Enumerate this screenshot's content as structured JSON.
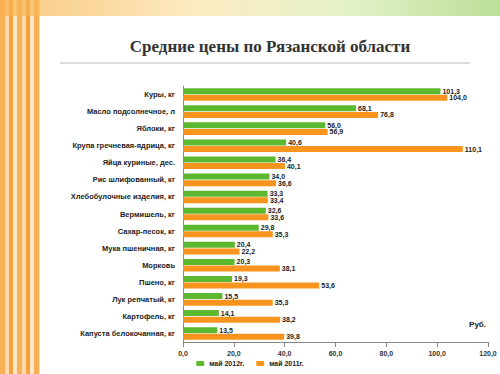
{
  "chart_data": {
    "type": "bar",
    "title": "Средние цены по Рязанской области",
    "orientation": "horizontal",
    "categories": [
      "Куры, кг",
      "Масло подсолнечное, л",
      "Яблоки, кг",
      "Крупа гречневая-ядрица, кг",
      "Яйца куриные, дес.",
      "Рис шлифованный, кг",
      "Хлебобулочные изделия, кг",
      "Вермишель, кг",
      "Сахар-песок, кг",
      "Мука пшеничная, кг",
      "Морковь",
      "Пшено, кг",
      "Лук репчатый, кг",
      "Картофель, кг",
      "Капуста белокочанная, кг"
    ],
    "series": [
      {
        "name": "май 2012г.",
        "color": "#5cb82e",
        "values": [
          101.3,
          68.1,
          56.0,
          40.6,
          36.4,
          34.0,
          33.3,
          32.6,
          29.8,
          20.4,
          20.3,
          19.3,
          15.5,
          14.1,
          13.5
        ],
        "value_labels": [
          "101,3",
          "68,1",
          "56,0",
          "40,6",
          "36,4",
          "34,0",
          "33,3",
          "32,6",
          "29,8",
          "20,4",
          "20,3",
          "19,3",
          "15,5",
          "14,1",
          "13,5"
        ]
      },
      {
        "name": "май 2011г.",
        "color": "#f7941d",
        "values": [
          104.0,
          76.8,
          56.9,
          110.1,
          40.1,
          36.6,
          33.4,
          33.6,
          35.3,
          22.2,
          38.1,
          53.6,
          35.3,
          38.2,
          39.8
        ],
        "value_labels": [
          "104,0",
          "76,8",
          "56,9",
          "110,1",
          "40,1",
          "36,6",
          "33,4",
          "33,6",
          "35,3",
          "22,2",
          "38,1",
          "53,6",
          "35,3",
          "38,2",
          "39,8"
        ]
      }
    ],
    "xlim": [
      0,
      120
    ],
    "xticks": [
      {
        "value": 0,
        "label": "0,0"
      },
      {
        "value": 20,
        "label": "20,0"
      },
      {
        "value": 40,
        "label": "40,0"
      },
      {
        "value": 60,
        "label": "60,0"
      },
      {
        "value": 80,
        "label": "80,0"
      },
      {
        "value": 100,
        "label": "100,0"
      },
      {
        "value": 120,
        "label": "120,0"
      }
    ],
    "annotations": [
      "Руб."
    ],
    "data_labels": true,
    "grid": false,
    "legend": "bottom"
  }
}
